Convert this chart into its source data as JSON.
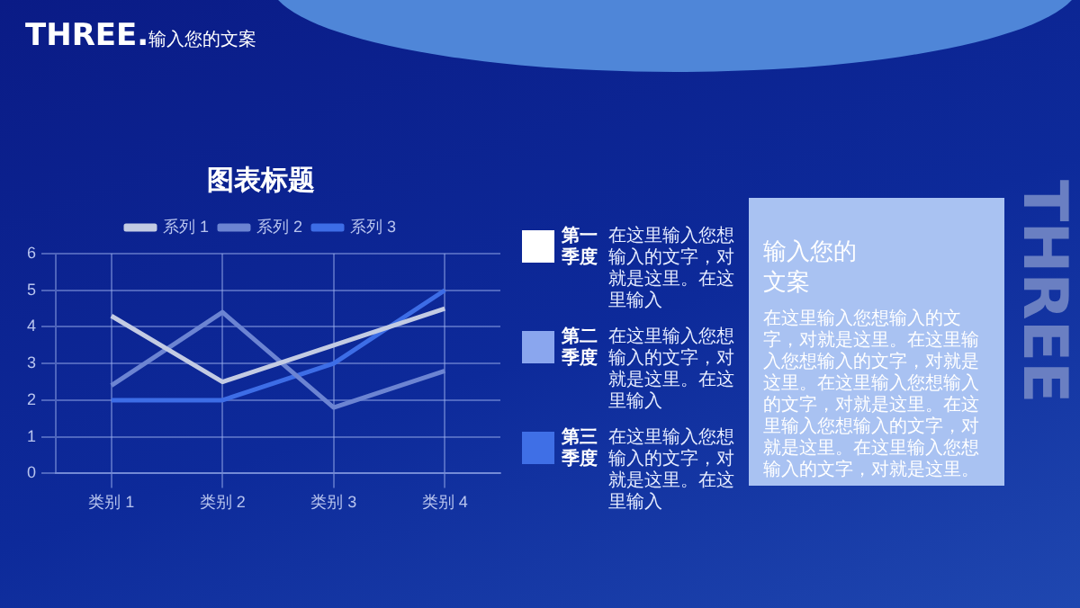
{
  "chart_data": {
    "type": "line",
    "title": "图表标题",
    "categories": [
      "类别 1",
      "类别 2",
      "类别 3",
      "类别 4"
    ],
    "series": [
      {
        "name": "系列 1",
        "color": "#c3cbe3",
        "values": [
          4.3,
          2.5,
          3.5,
          4.5
        ]
      },
      {
        "name": "系列 2",
        "color": "#6c84d2",
        "values": [
          2.4,
          4.4,
          1.8,
          2.8
        ]
      },
      {
        "name": "系列 3",
        "color": "#3d6de6",
        "values": [
          2.0,
          2.0,
          3.0,
          5.0
        ]
      }
    ],
    "ylim": [
      0,
      6
    ],
    "yticks": [
      0,
      1,
      2,
      3,
      4,
      5,
      6
    ],
    "grid": true,
    "legend": "top",
    "marker": "none",
    "line_style": "solid",
    "annotations": [
      "THREE.输入您的文案",
      "THREE",
      "第一季度",
      "在这里输入您想输入的文字，对就是这里。在这里输入",
      "第二季度",
      "在这里输入您想输入的文字，对就是这里。在这里输入",
      "第三季度",
      "在这里输入您想输入的文字，对就是这里。在这里输入",
      "输入您的文案",
      "在这里输入您想输入的文字，对就是这里。在这里输入您想输入的文字，对就是这里。在这里输入您想输入的文字，对就是这里。在这里输入您想输入的文字，对就是这里。在这里输入您想输入的文字，对就是这里。"
    ]
  }
}
